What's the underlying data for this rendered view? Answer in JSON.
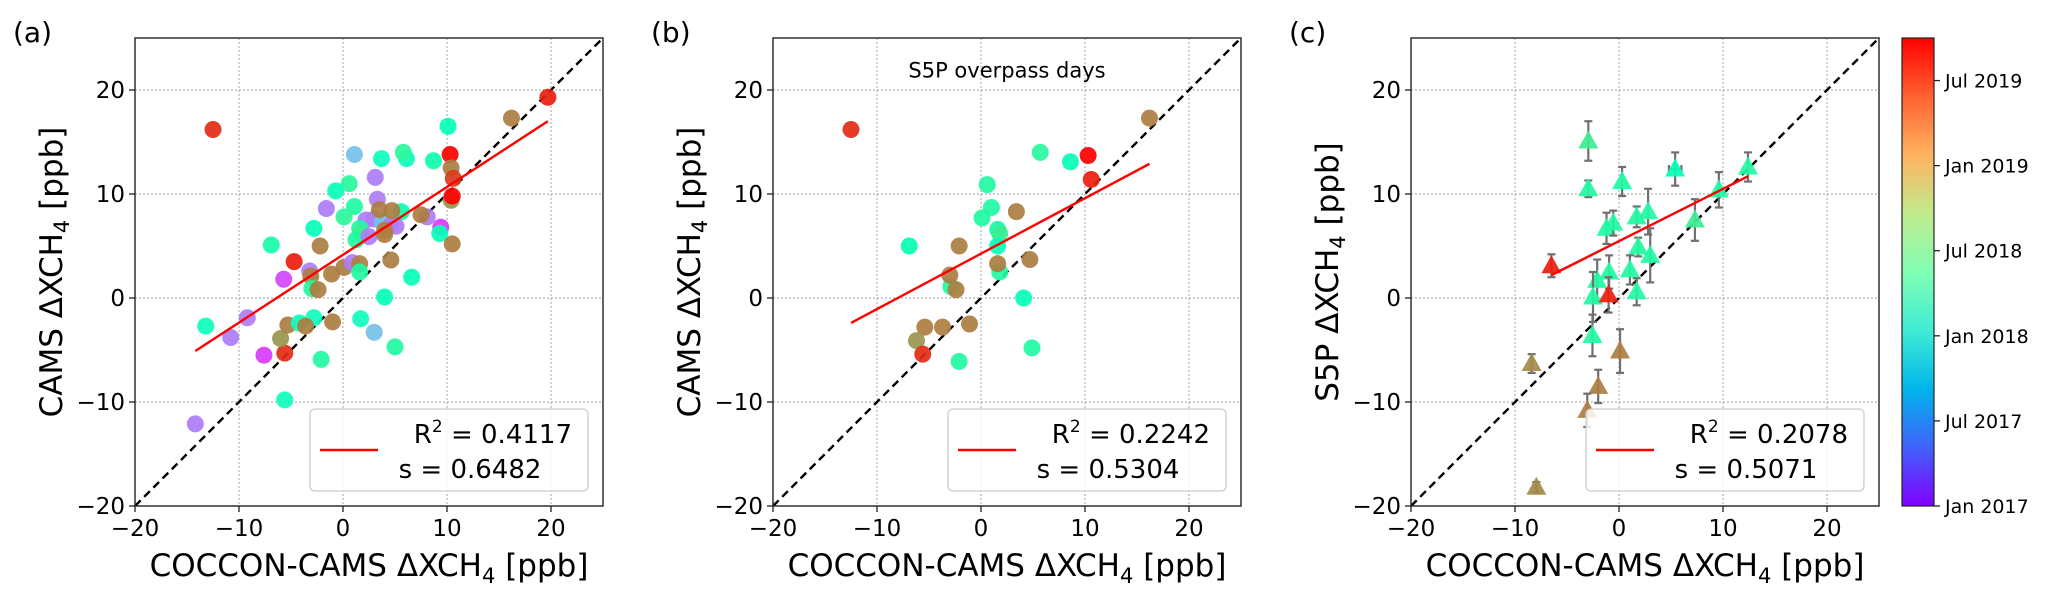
{
  "chart_data": [
    {
      "panel_label": "(a)",
      "type": "scatter",
      "marker": "circle",
      "xlabel": "COCCON-CAMS ΔXCH",
      "xlabel_sub": "4",
      "xlabel_unit": " [ppb]",
      "ylabel": "CAMS ΔXCH",
      "ylabel_sub": "4",
      "ylabel_unit": " [ppb]",
      "xlim": [
        -20,
        25
      ],
      "ylim": [
        -20,
        25
      ],
      "xticks": [
        -20,
        -10,
        0,
        10,
        20
      ],
      "yticks": [
        -20,
        -10,
        0,
        10,
        20
      ],
      "tick_labels": [
        "−20",
        "−10",
        "0",
        "10",
        "20"
      ],
      "grid": true,
      "one_to_one_line": true,
      "annotation": "",
      "fit_line": {
        "x": [
          -14.2,
          19.7
        ],
        "y": [
          -5.1,
          17.0
        ],
        "color": "#ff0000"
      },
      "legend": {
        "r2_label": "R",
        "r2_sup": "2",
        "r2_value": " = 0.4117",
        "s_text": "s = 0.6482",
        "placement": "lower-right"
      },
      "points": [
        {
          "x": -12.5,
          "y": 16.2,
          "date": 2019.6
        },
        {
          "x": 19.7,
          "y": 19.3,
          "date": 2019.65
        },
        {
          "x": 16.2,
          "y": 17.3,
          "date": 2019.3
        },
        {
          "x": 10.1,
          "y": 16.5,
          "date": 2018.35
        },
        {
          "x": 1.1,
          "y": 13.8,
          "date": 2017.75
        },
        {
          "x": 3.7,
          "y": 13.4,
          "date": 2018.3
        },
        {
          "x": 6.1,
          "y": 13.4,
          "date": 2018.3
        },
        {
          "x": 5.8,
          "y": 14.0,
          "date": 2018.6
        },
        {
          "x": 8.7,
          "y": 13.2,
          "date": 2018.45
        },
        {
          "x": 10.3,
          "y": 13.8,
          "date": 2019.75
        },
        {
          "x": 10.4,
          "y": 12.5,
          "date": 2019.3
        },
        {
          "x": 10.6,
          "y": 11.5,
          "date": 2019.55
        },
        {
          "x": 10.4,
          "y": 9.4,
          "date": 2019.2
        },
        {
          "x": 10.5,
          "y": 9.8,
          "date": 2019.75
        },
        {
          "x": 3.1,
          "y": 11.6,
          "date": 2017.45
        },
        {
          "x": 0.6,
          "y": 11.0,
          "date": 2018.6
        },
        {
          "x": -0.7,
          "y": 10.3,
          "date": 2018.35
        },
        {
          "x": -1.6,
          "y": 8.6,
          "date": 2017.45
        },
        {
          "x": 3.3,
          "y": 9.5,
          "date": 2017.45
        },
        {
          "x": 1.1,
          "y": 8.8,
          "date": 2018.55
        },
        {
          "x": 0.1,
          "y": 7.8,
          "date": 2018.6
        },
        {
          "x": -2.8,
          "y": 6.7,
          "date": 2018.35
        },
        {
          "x": -6.9,
          "y": 5.1,
          "date": 2018.5
        },
        {
          "x": -2.2,
          "y": 5.0,
          "date": 2019.3
        },
        {
          "x": 5.6,
          "y": 8.3,
          "date": 2018.4
        },
        {
          "x": 2.2,
          "y": 7.5,
          "date": 2017.45
        },
        {
          "x": 3.0,
          "y": 7.6,
          "date": 2017.45
        },
        {
          "x": 3.8,
          "y": 7.3,
          "date": 2017.75
        },
        {
          "x": 4.6,
          "y": 7.0,
          "date": 2017.45
        },
        {
          "x": 5.1,
          "y": 6.9,
          "date": 2017.45
        },
        {
          "x": 8.1,
          "y": 7.8,
          "date": 2017.45
        },
        {
          "x": 9.4,
          "y": 6.8,
          "date": 2017.2
        },
        {
          "x": 9.3,
          "y": 6.2,
          "date": 2018.35
        },
        {
          "x": 7.5,
          "y": 8.0,
          "date": 2019.3
        },
        {
          "x": 3.5,
          "y": 8.5,
          "date": 2019.3
        },
        {
          "x": 4.7,
          "y": 8.4,
          "date": 2019.3
        },
        {
          "x": 1.6,
          "y": 6.7,
          "date": 2018.55
        },
        {
          "x": 1.7,
          "y": 6.2,
          "date": 2018.7
        },
        {
          "x": 1.25,
          "y": 5.6,
          "date": 2018.55
        },
        {
          "x": 2.5,
          "y": 5.9,
          "date": 2017.45
        },
        {
          "x": 4.0,
          "y": 6.5,
          "date": 2019.3
        },
        {
          "x": 4.0,
          "y": 6.1,
          "date": 2019.3
        },
        {
          "x": 10.5,
          "y": 5.2,
          "date": 2019.3
        },
        {
          "x": -4.7,
          "y": 3.5,
          "date": 2019.65
        },
        {
          "x": -5.7,
          "y": 1.8,
          "date": 2017.25
        },
        {
          "x": -3.2,
          "y": 2.6,
          "date": 2017.45
        },
        {
          "x": -3.1,
          "y": 2.1,
          "date": 2019.3
        },
        {
          "x": -3.0,
          "y": 0.9,
          "date": 2018.55
        },
        {
          "x": -2.4,
          "y": 0.8,
          "date": 2019.3
        },
        {
          "x": -1.1,
          "y": 2.3,
          "date": 2019.3
        },
        {
          "x": 0.1,
          "y": 2.95,
          "date": 2019.3
        },
        {
          "x": 0.9,
          "y": 3.4,
          "date": 2017.45
        },
        {
          "x": 1.6,
          "y": 3.3,
          "date": 2019.3
        },
        {
          "x": 1.6,
          "y": 2.5,
          "date": 2018.55
        },
        {
          "x": 4.6,
          "y": 3.65,
          "date": 2019.3
        },
        {
          "x": 6.6,
          "y": 2.0,
          "date": 2018.35
        },
        {
          "x": 4.0,
          "y": 0.1,
          "date": 2018.35
        },
        {
          "x": -13.2,
          "y": -2.7,
          "date": 2018.3
        },
        {
          "x": -9.2,
          "y": -1.9,
          "date": 2017.45
        },
        {
          "x": -10.8,
          "y": -3.8,
          "date": 2017.45
        },
        {
          "x": -7.6,
          "y": -5.5,
          "date": 2017.2
        },
        {
          "x": -5.6,
          "y": -5.3,
          "date": 2019.6
        },
        {
          "x": -6.0,
          "y": -3.9,
          "date": 2019.2
        },
        {
          "x": -5.3,
          "y": -2.6,
          "date": 2019.3
        },
        {
          "x": -4.2,
          "y": -2.4,
          "date": 2018.3
        },
        {
          "x": -2.8,
          "y": -1.9,
          "date": 2018.3
        },
        {
          "x": -3.6,
          "y": -2.7,
          "date": 2019.3
        },
        {
          "x": -1.0,
          "y": -2.3,
          "date": 2019.3
        },
        {
          "x": -2.1,
          "y": -5.9,
          "date": 2018.55
        },
        {
          "x": 1.7,
          "y": -2.0,
          "date": 2018.3
        },
        {
          "x": 3.0,
          "y": -3.3,
          "date": 2017.75
        },
        {
          "x": 5.0,
          "y": -4.7,
          "date": 2018.55
        },
        {
          "x": -5.6,
          "y": -9.8,
          "date": 2018.3
        },
        {
          "x": -14.2,
          "y": -12.1,
          "date": 2017.45
        }
      ]
    },
    {
      "panel_label": "(b)",
      "type": "scatter",
      "marker": "circle",
      "xlabel": "COCCON-CAMS ΔXCH",
      "xlabel_sub": "4",
      "xlabel_unit": " [ppb]",
      "ylabel": "CAMS ΔXCH",
      "ylabel_sub": "4",
      "ylabel_unit": " [ppb]",
      "xlim": [
        -20,
        25
      ],
      "ylim": [
        -20,
        25
      ],
      "xticks": [
        -20,
        -10,
        0,
        10,
        20
      ],
      "yticks": [
        -20,
        -10,
        0,
        10,
        20
      ],
      "tick_labels": [
        "−20",
        "−10",
        "0",
        "10",
        "20"
      ],
      "grid": true,
      "one_to_one_line": true,
      "annotation": "S5P overpass days",
      "fit_line": {
        "x": [
          -12.5,
          16.2
        ],
        "y": [
          -2.4,
          12.9
        ],
        "color": "#ff0000"
      },
      "legend": {
        "r2_label": "R",
        "r2_sup": "2",
        "r2_value": " = 0.2242",
        "s_text": "s = 0.5304",
        "placement": "lower-right"
      },
      "points": [
        {
          "x": -12.5,
          "y": 16.2,
          "date": 2019.6
        },
        {
          "x": 16.2,
          "y": 17.3,
          "date": 2019.3
        },
        {
          "x": 5.7,
          "y": 14.0,
          "date": 2018.6
        },
        {
          "x": 8.6,
          "y": 13.1,
          "date": 2018.35
        },
        {
          "x": 10.3,
          "y": 13.7,
          "date": 2019.75
        },
        {
          "x": 10.6,
          "y": 11.4,
          "date": 2019.65
        },
        {
          "x": 0.6,
          "y": 10.9,
          "date": 2018.55
        },
        {
          "x": 1.0,
          "y": 8.7,
          "date": 2018.55
        },
        {
          "x": 0.1,
          "y": 7.7,
          "date": 2018.55
        },
        {
          "x": 3.4,
          "y": 8.3,
          "date": 2019.3
        },
        {
          "x": 1.6,
          "y": 6.6,
          "date": 2018.5
        },
        {
          "x": 1.8,
          "y": 6.2,
          "date": 2018.7
        },
        {
          "x": 1.6,
          "y": 5.0,
          "date": 2018.35
        },
        {
          "x": -6.9,
          "y": 5.0,
          "date": 2018.4
        },
        {
          "x": -2.1,
          "y": 5.0,
          "date": 2019.3
        },
        {
          "x": 1.8,
          "y": 2.5,
          "date": 2018.55
        },
        {
          "x": 1.6,
          "y": 3.3,
          "date": 2019.3
        },
        {
          "x": 4.7,
          "y": 3.7,
          "date": 2019.3
        },
        {
          "x": -2.9,
          "y": 1.1,
          "date": 2018.55
        },
        {
          "x": -3.0,
          "y": 2.2,
          "date": 2019.3
        },
        {
          "x": -2.4,
          "y": 0.8,
          "date": 2019.3
        },
        {
          "x": 4.1,
          "y": 0.0,
          "date": 2018.35
        },
        {
          "x": -5.4,
          "y": -2.8,
          "date": 2019.3
        },
        {
          "x": -3.7,
          "y": -2.8,
          "date": 2019.3
        },
        {
          "x": -1.1,
          "y": -2.5,
          "date": 2019.3
        },
        {
          "x": -6.2,
          "y": -4.1,
          "date": 2019.2
        },
        {
          "x": -5.6,
          "y": -5.4,
          "date": 2019.6
        },
        {
          "x": -2.1,
          "y": -6.1,
          "date": 2018.55
        },
        {
          "x": 4.9,
          "y": -4.8,
          "date": 2018.55
        }
      ]
    },
    {
      "panel_label": "(c)",
      "type": "scatter",
      "marker": "triangle",
      "xlabel": "COCCON-CAMS ΔXCH",
      "xlabel_sub": "4",
      "xlabel_unit": " [ppb]",
      "ylabel": "S5P ΔXCH",
      "ylabel_sub": "4",
      "ylabel_unit": " [ppb]",
      "xlim": [
        -20,
        25
      ],
      "ylim": [
        -20,
        25
      ],
      "xticks": [
        -20,
        -10,
        0,
        10,
        20
      ],
      "yticks": [
        -20,
        -10,
        0,
        10,
        20
      ],
      "tick_labels": [
        "−20",
        "−10",
        "0",
        "10",
        "20"
      ],
      "grid": true,
      "one_to_one_line": true,
      "annotation": "",
      "fit_line": {
        "x": [
          -6.5,
          12.4
        ],
        "y": [
          2.2,
          11.7
        ],
        "color": "#ff0000"
      },
      "legend": {
        "r2_label": "R",
        "r2_sup": "2",
        "r2_value": " = 0.2078",
        "s_text": "s = 0.5071",
        "placement": "lower-right"
      },
      "points": [
        {
          "x": -2.95,
          "y": 15.1,
          "yerr": 1.9,
          "xerr": 0,
          "date": 2018.7
        },
        {
          "x": -2.95,
          "y": 10.5,
          "yerr": 0.8,
          "xerr": 0,
          "date": 2018.55
        },
        {
          "x": 0.3,
          "y": 11.2,
          "yerr": 1.4,
          "xerr": 0,
          "date": 2018.55
        },
        {
          "x": 5.4,
          "y": 12.4,
          "yerr": 1.6,
          "xerr": 0.6,
          "date": 2018.35
        },
        {
          "x": 9.6,
          "y": 10.4,
          "yerr": 1.7,
          "xerr": 0,
          "date": 2018.55
        },
        {
          "x": 12.4,
          "y": 12.6,
          "yerr": 1.4,
          "xerr": 0,
          "date": 2018.55
        },
        {
          "x": 7.3,
          "y": 7.5,
          "yerr": 2.0,
          "xerr": 0,
          "date": 2018.7
        },
        {
          "x": -1.2,
          "y": 6.7,
          "yerr": 1.5,
          "xerr": 0,
          "date": 2018.55
        },
        {
          "x": -0.55,
          "y": 7.2,
          "yerr": 1.2,
          "xerr": 0,
          "date": 2018.55
        },
        {
          "x": 1.7,
          "y": 7.8,
          "yerr": 1.0,
          "xerr": 0,
          "date": 2018.55
        },
        {
          "x": 2.8,
          "y": 8.3,
          "yerr": 2.2,
          "xerr": 0,
          "date": 2018.55
        },
        {
          "x": 1.85,
          "y": 4.9,
          "yerr": 0.9,
          "xerr": 0,
          "date": 2018.55
        },
        {
          "x": 3.0,
          "y": 4.1,
          "yerr": 2.6,
          "xerr": 0,
          "date": 2018.55
        },
        {
          "x": 1.05,
          "y": 2.7,
          "yerr": 1.4,
          "xerr": 0,
          "date": 2018.55
        },
        {
          "x": 1.7,
          "y": 0.6,
          "yerr": 1.3,
          "xerr": 0,
          "date": 2018.55
        },
        {
          "x": -0.95,
          "y": 2.5,
          "yerr": 1.6,
          "xerr": 0,
          "date": 2018.55
        },
        {
          "x": -2.1,
          "y": 1.7,
          "yerr": 2.0,
          "xerr": 0,
          "date": 2018.55
        },
        {
          "x": -2.5,
          "y": 0.1,
          "yerr": 2.4,
          "xerr": 0,
          "date": 2018.55
        },
        {
          "x": -1.0,
          "y": 0.3,
          "yerr": 1.7,
          "xerr": 0,
          "date": 2019.65
        },
        {
          "x": -6.5,
          "y": 3.1,
          "yerr": 1.1,
          "xerr": 0,
          "date": 2019.65
        },
        {
          "x": -2.55,
          "y": -3.6,
          "yerr": 2.0,
          "xerr": 0,
          "date": 2018.55
        },
        {
          "x": 0.1,
          "y": -5.1,
          "yerr": 2.1,
          "xerr": 0,
          "date": 2019.3
        },
        {
          "x": -2.0,
          "y": -8.5,
          "yerr": 1.6,
          "xerr": 0,
          "date": 2019.3
        },
        {
          "x": -3.05,
          "y": -10.8,
          "yerr": 1.6,
          "xerr": 0,
          "date": 2019.3
        },
        {
          "x": -8.4,
          "y": -6.3,
          "yerr": 0.9,
          "xerr": 0,
          "date": 2019.25
        },
        {
          "x": -7.95,
          "y": -18.2,
          "yerr": 0.5,
          "xerr": 0,
          "date": 2019.25
        }
      ]
    }
  ],
  "colorbar": {
    "colormap": "rainbow",
    "range": [
      2017.0,
      2019.75
    ],
    "ticks": [
      {
        "value": 2017.0,
        "label": "Jan 2017"
      },
      {
        "value": 2017.5,
        "label": "Jul 2017"
      },
      {
        "value": 2018.0,
        "label": "Jan 2018"
      },
      {
        "value": 2018.5,
        "label": "Jul 2018"
      },
      {
        "value": 2019.0,
        "label": "Jan 2019"
      },
      {
        "value": 2019.5,
        "label": "Jul 2019"
      }
    ]
  },
  "colors": {
    "fit_line": "#ff0000",
    "one_to_one": "#000000",
    "grid": "#b0b0b0",
    "errorbar": "#707070"
  }
}
